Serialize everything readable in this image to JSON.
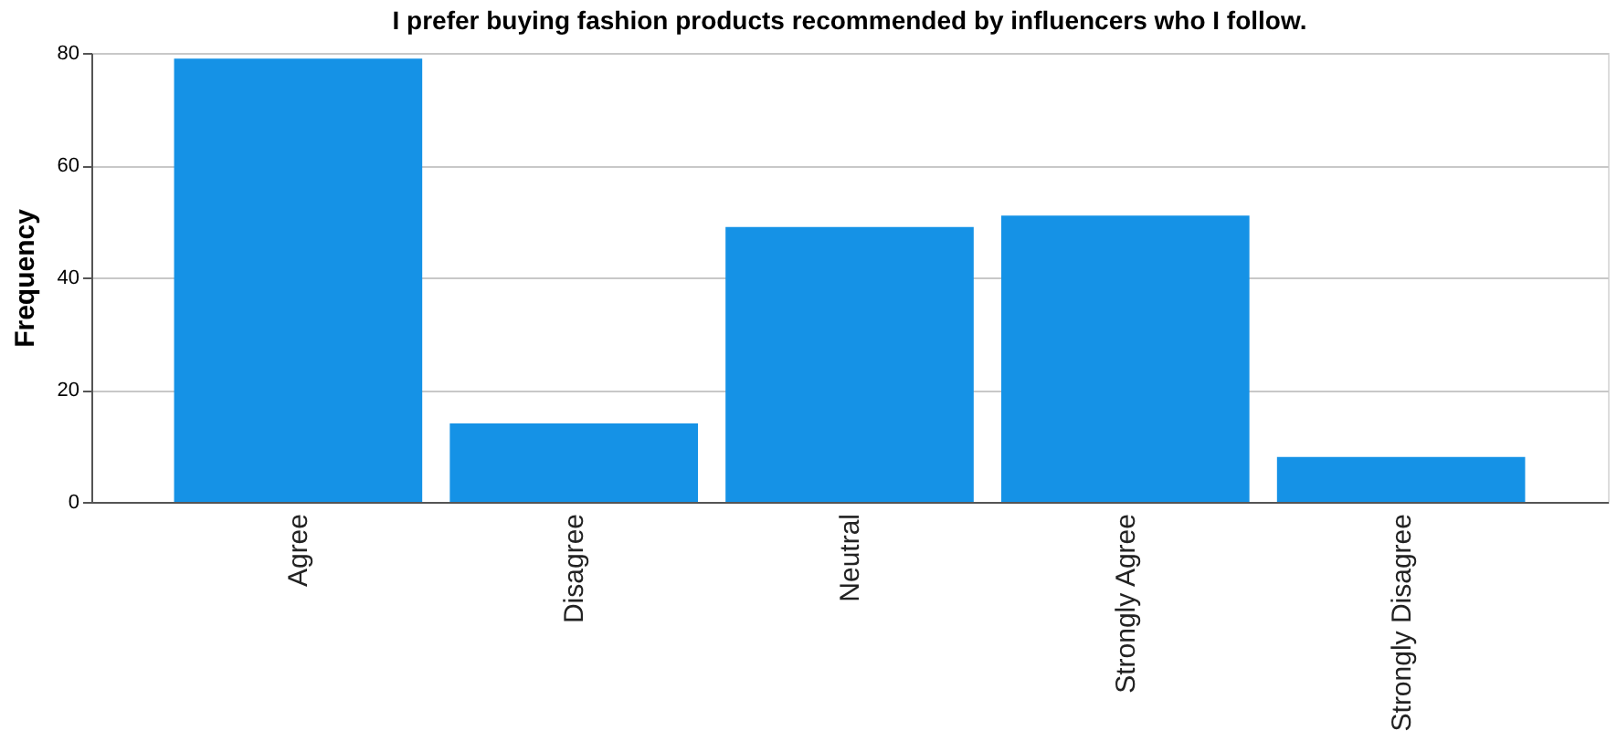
{
  "chart_data": {
    "type": "bar",
    "title": "I prefer buying fashion products recommended by influencers who I follow.",
    "ylabel": "Frequency",
    "categories": [
      "Agree",
      "Disagree",
      "Neutral",
      "Strongly Agree",
      "Strongly Disagree"
    ],
    "values": [
      79,
      14,
      49,
      51,
      8
    ],
    "color": "#1592e6",
    "ylim": [
      0,
      80
    ],
    "yticks": [
      0,
      20,
      40,
      60,
      80
    ],
    "grid": "y"
  }
}
